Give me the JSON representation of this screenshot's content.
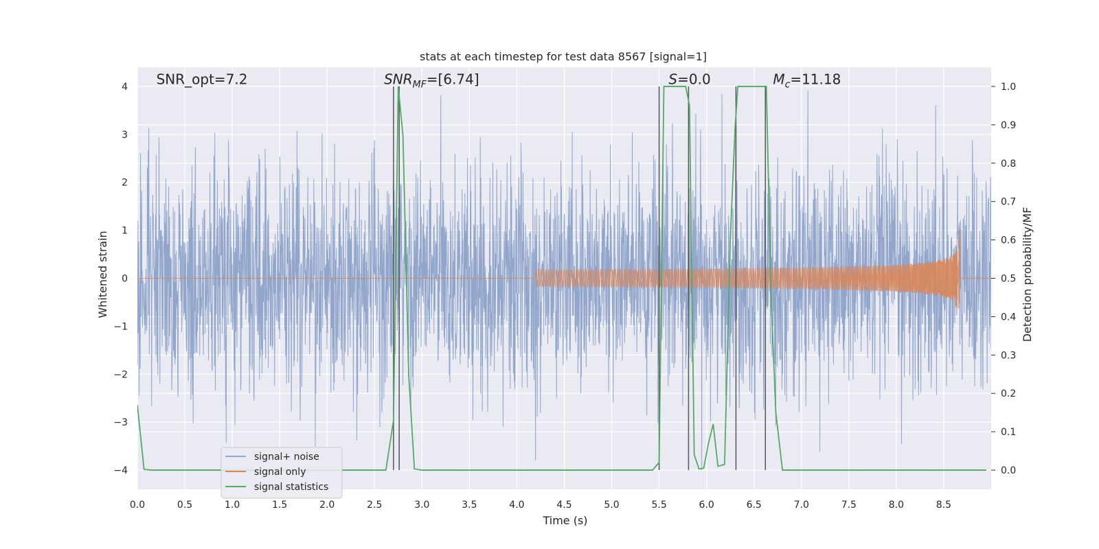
{
  "chart_data": {
    "type": "line",
    "title": "stats at each timestep for test data 8567 [signal=1]",
    "xlabel": "Time (s)",
    "ylabel_left": "Whitened strain",
    "ylabel_right": "Detection probability/MF",
    "xlim": [
      0.0,
      9.0
    ],
    "ylim_left": [
      -4.4,
      4.4
    ],
    "ylim_right": [
      -0.05,
      1.05
    ],
    "xticks": [
      "0.0",
      "0.5",
      "1.0",
      "1.5",
      "2.0",
      "2.5",
      "3.0",
      "3.5",
      "4.0",
      "4.5",
      "5.0",
      "5.5",
      "6.0",
      "6.5",
      "7.0",
      "7.5",
      "8.0",
      "8.5"
    ],
    "yticks_left": [
      "−4",
      "−3",
      "−2",
      "−1",
      "0",
      "1",
      "2",
      "3",
      "4"
    ],
    "yticks_right": [
      "0.0",
      "0.1",
      "0.2",
      "0.3",
      "0.4",
      "0.5",
      "0.6",
      "0.7",
      "0.8",
      "0.9",
      "1.0"
    ],
    "grid": true,
    "legend_position": "lower-left",
    "annotations": [
      {
        "text": "SNR_opt=7.2",
        "x": 0.2,
        "y": 4.05
      },
      {
        "text": "SNR_MF=[6.74]",
        "x": 2.6,
        "y": 4.05
      },
      {
        "text": "S=0.0",
        "x": 5.6,
        "y": 4.05
      },
      {
        "text": "M_c=11.18",
        "x": 6.7,
        "y": 4.05
      }
    ],
    "series": [
      {
        "name": "signal+ noise",
        "color": "#92a6cc",
        "kind": "noise",
        "range": [
          -4.0,
          4.0
        ]
      },
      {
        "name": "signal only",
        "color": "#dd8452",
        "kind": "chirp",
        "peak_time": 8.67,
        "amplitude": 1.1
      },
      {
        "name": "signal statistics",
        "color": "#55a868",
        "x": [
          0.0,
          0.07,
          0.15,
          0.5,
          1.0,
          1.5,
          2.0,
          2.5,
          2.62,
          2.7,
          2.75,
          2.8,
          2.86,
          2.92,
          3.0,
          3.5,
          4.0,
          4.5,
          5.0,
          5.43,
          5.5,
          5.55,
          5.6,
          5.75,
          5.78,
          5.82,
          5.87,
          5.92,
          5.97,
          6.02,
          6.07,
          6.12,
          6.19,
          6.25,
          6.3,
          6.33,
          6.38,
          6.43,
          6.6,
          6.63,
          6.68,
          6.73,
          6.8,
          7.0,
          7.5,
          8.0,
          8.5,
          8.95
        ],
        "y": [
          0.17,
          0.002,
          0.0,
          0.0,
          0.0,
          0.0,
          0.0,
          0.0,
          0.0,
          0.13,
          1.0,
          0.87,
          0.25,
          0.003,
          0.0,
          0.0,
          0.0,
          0.0,
          0.0,
          0.0,
          0.02,
          1.0,
          1.0,
          1.0,
          1.0,
          0.95,
          0.04,
          0.003,
          0.005,
          0.07,
          0.12,
          0.01,
          0.015,
          0.6,
          0.89,
          1.0,
          1.0,
          1.0,
          1.0,
          1.0,
          0.45,
          0.15,
          0.0,
          0.0,
          0.0,
          0.0,
          0.0,
          0.0
        ]
      }
    ],
    "vertical_lines": [
      2.7,
      2.76,
      5.5,
      5.81,
      6.31,
      6.62
    ]
  }
}
